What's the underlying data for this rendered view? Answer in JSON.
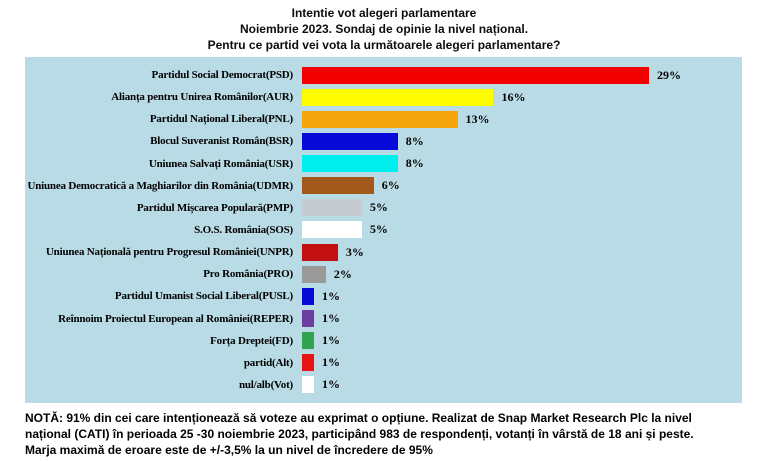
{
  "chart_data": {
    "type": "bar",
    "orientation": "horizontal",
    "title": "Intentie vot alegeri parlamentare",
    "subtitle": "Noiembrie 2023. Sondaj de opinie la nivel național.",
    "question": "Pentru ce partid vei vota la următoarele alegeri parlamentare?",
    "unit": "%",
    "xlim": [
      0,
      29
    ],
    "grid": false,
    "legend": "none",
    "plot_background": "#B9DBE5",
    "categories": [
      "Partidul Social Democrat(PSD)",
      "Alianța pentru Unirea Românilor(AUR)",
      "Partidul Național Liberal(PNL)",
      "Blocul Suveranist Român(BSR)",
      "Uniunea Salvați România(USR)",
      "Uniunea Democratică a Maghiarilor din România(UDMR)",
      "Partidul Mișcarea Populară(PMP)",
      "S.O.S. România(SOS)",
      "Uniunea Națională pentru Progresul României(UNPR)",
      "Pro România(PRO)",
      "Partidul Umanist Social Liberal(PUSL)",
      "Reînnoim Proiectul European al României(REPER)",
      "Forța Dreptei(FD)",
      "partid(Alt)",
      "nul/alb(Vot)"
    ],
    "values": [
      29,
      16,
      13,
      8,
      8,
      6,
      5,
      5,
      3,
      2,
      1,
      1,
      1,
      1,
      1
    ],
    "value_labels": [
      "29%",
      "16%",
      "13%",
      "8%",
      "8%",
      "6%",
      "5%",
      "5%",
      "3%",
      "2%",
      "1%",
      "1%",
      "1%",
      "1%",
      "1%"
    ],
    "bar_colors": [
      "#F20000",
      "#FDFD00",
      "#F3A60B",
      "#0909D8",
      "#00EEEE",
      "#A4591C",
      "#C6CBD1",
      "#FFFFFF",
      "#C20F12",
      "#9A9A9A",
      "#0909D8",
      "#6B3FA0",
      "#2FA350",
      "#E81414",
      "#FFFFFF"
    ]
  },
  "note": {
    "lines": [
      "NOTĂ: 91% din cei care intenționează să voteze au exprimat o opțiune. Realizat de Snap Market Research Plc la nivel",
      "național (CATI) în perioada 25 -30 noiembrie 2023, participând 983 de respondenți, votanți în vârstă de 18 ani și peste.",
      "Marja maximă de eroare este de +/-3,5% la un nivel de încredere de 95%"
    ]
  }
}
